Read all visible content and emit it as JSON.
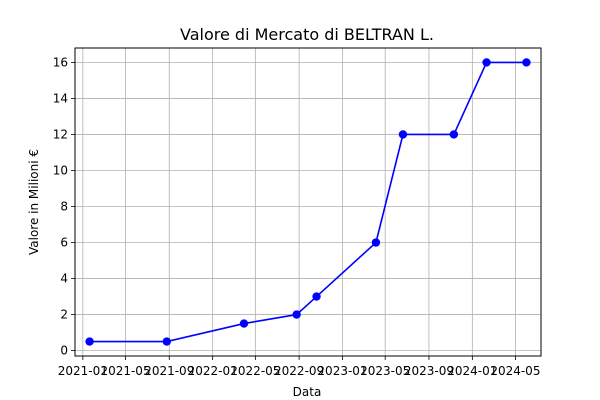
{
  "chart_data": {
    "type": "line",
    "title": "Valore di Mercato di BELTRAN L.",
    "xlabel": "Data",
    "ylabel": "Valore in Milioni €",
    "x": [
      "2021-01-20",
      "2021-08-25",
      "2022-03-30",
      "2022-08-25",
      "2022-10-20",
      "2023-04-05",
      "2023-06-20",
      "2023-11-10",
      "2024-02-10",
      "2024-06-01"
    ],
    "series": [
      {
        "values": [
          0.5,
          0.5,
          1.5,
          2,
          3,
          6,
          12,
          12,
          16,
          16
        ],
        "color": "#0000ff"
      }
    ],
    "xticks": [
      "2021-01",
      "2021-05",
      "2021-09",
      "2022-01",
      "2022-05",
      "2022-09",
      "2023-01",
      "2023-05",
      "2023-09",
      "2024-01",
      "2024-05"
    ],
    "xlim": [
      "2020-12-10",
      "2024-07-12"
    ],
    "yticks": [
      0,
      2,
      4,
      6,
      8,
      10,
      12,
      14,
      16
    ],
    "ylim": [
      -0.3,
      16.8
    ],
    "grid": true,
    "marker": "circle"
  }
}
